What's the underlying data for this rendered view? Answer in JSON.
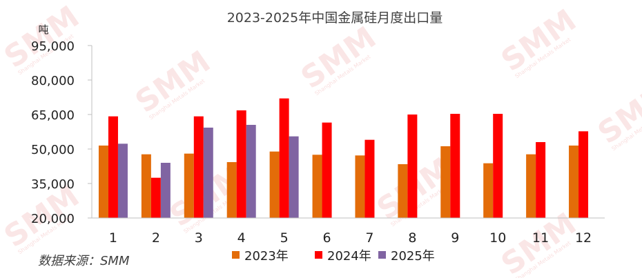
{
  "watermark": {
    "text": "SMM",
    "subtext": "Shanghai Metals Market"
  },
  "chart_data": {
    "type": "bar",
    "title": "2023-2025年中国金属硅月度出口量",
    "ylabel": "吨",
    "source": "数据来源：SMM",
    "categories": [
      "1",
      "2",
      "3",
      "4",
      "5",
      "6",
      "7",
      "8",
      "9",
      "10",
      "11",
      "12"
    ],
    "ylim": [
      20000,
      95000
    ],
    "yticks": [
      20000,
      35000,
      50000,
      65000,
      80000,
      95000
    ],
    "ytick_labels": [
      "20,000",
      "35,000",
      "50,000",
      "65,000",
      "80,000",
      "95,000"
    ],
    "grid": false,
    "legend_position": "bottom",
    "series": [
      {
        "name": "2023年",
        "color": "#E36C09",
        "values": [
          51500,
          47700,
          48000,
          44300,
          48900,
          47500,
          47200,
          43400,
          51200,
          43800,
          47700,
          51500
        ]
      },
      {
        "name": "2024年",
        "color": "#FF0000",
        "values": [
          64200,
          37500,
          64200,
          66800,
          72000,
          61500,
          54000,
          65000,
          65300,
          65300,
          53000,
          57700
        ]
      },
      {
        "name": "2025年",
        "color": "#8064A2",
        "values": [
          52300,
          44000,
          59300,
          60500,
          55500,
          null,
          null,
          null,
          null,
          null,
          null,
          null
        ]
      }
    ]
  }
}
